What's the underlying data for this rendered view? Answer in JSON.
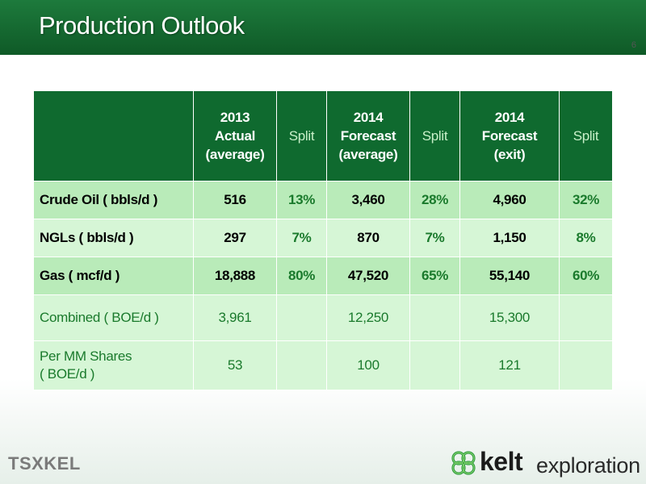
{
  "header": {
    "title": "Production Outlook",
    "page_number": "6"
  },
  "table": {
    "columns": [
      {
        "lines": [
          "",
          "",
          ""
        ],
        "type": "label"
      },
      {
        "lines": [
          "2013",
          "Actual",
          "(average)"
        ],
        "type": "value"
      },
      {
        "lines": [
          "Split",
          "",
          ""
        ],
        "type": "split"
      },
      {
        "lines": [
          "2014",
          "Forecast",
          "(average)"
        ],
        "type": "value"
      },
      {
        "lines": [
          "Split",
          "",
          ""
        ],
        "type": "split"
      },
      {
        "lines": [
          "2014",
          "Forecast",
          "(exit)"
        ],
        "type": "value"
      },
      {
        "lines": [
          "Split",
          "",
          ""
        ],
        "type": "split"
      }
    ],
    "rows": [
      {
        "label": "Crude Oil ( bbls/d )",
        "values": [
          "516",
          "13%",
          "3,460",
          "28%",
          "4,960",
          "32%"
        ]
      },
      {
        "label": "NGLs ( bbls/d )",
        "values": [
          "297",
          "7%",
          "870",
          "7%",
          "1,150",
          "8%"
        ]
      },
      {
        "label": "Gas ( mcf/d )",
        "values": [
          "18,888",
          "80%",
          "47,520",
          "65%",
          "55,140",
          "60%"
        ]
      },
      {
        "label": "Combined ( BOE/d )",
        "values": [
          "3,961",
          "",
          "12,250",
          "",
          "15,300",
          ""
        ]
      },
      {
        "label_lines": [
          "Per MM Shares",
          "( BOE/d )"
        ],
        "values": [
          "53",
          "",
          "100",
          "",
          "121",
          ""
        ]
      }
    ]
  },
  "footer": {
    "tsx_logo": {
      "left": "TSX",
      "right": "KEL"
    },
    "kelt_logo": {
      "bold": "kelt",
      "light": "exploration",
      "icon": "celtic-knot-icon"
    }
  },
  "colors": {
    "header_green": "#0f6a2f",
    "row_dark": "#b9ebb9",
    "row_light": "#d6f6d6",
    "split_text": "#1a7a2c"
  }
}
